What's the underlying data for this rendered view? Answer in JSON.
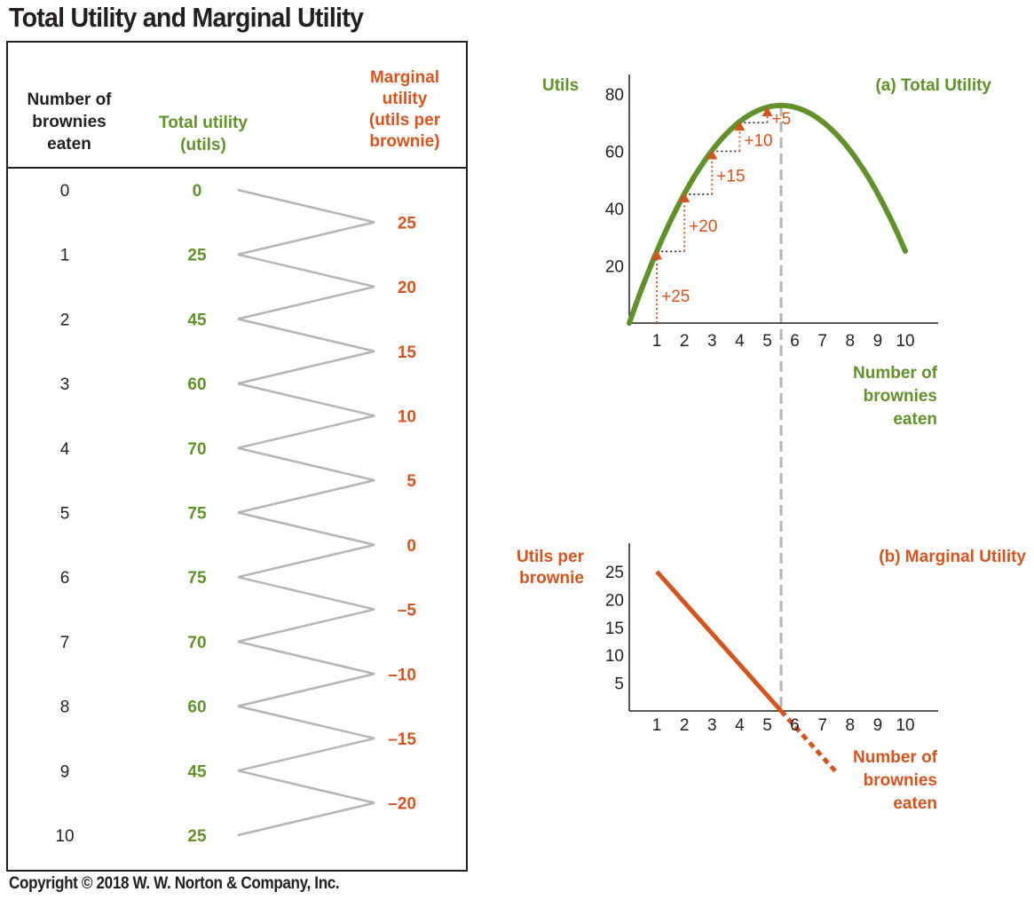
{
  "title": "Total Utility and Marginal Utility",
  "copyright": "Copyright © 2018 W. W. Norton & Company, Inc.",
  "colors": {
    "green": "#62902b",
    "orange": "#d4541e",
    "gray": "#b4b4b4",
    "black": "#231f20"
  },
  "table": {
    "col_brownies_header": [
      "Number of",
      "brownies",
      "eaten"
    ],
    "col_total_header": [
      "Total utility",
      "(utils)"
    ],
    "col_marginal_header": [
      "Marginal",
      "utility",
      "(utils per",
      "brownie)"
    ],
    "brownies": [
      "0",
      "1",
      "2",
      "3",
      "4",
      "5",
      "6",
      "7",
      "8",
      "9",
      "10"
    ],
    "total_utility": [
      "0",
      "25",
      "45",
      "60",
      "70",
      "75",
      "75",
      "70",
      "60",
      "45",
      "25"
    ],
    "marginal_utility": [
      "25",
      "20",
      "15",
      "10",
      "5",
      "0",
      "–5",
      "–10",
      "–15",
      "–20"
    ]
  },
  "chart_data": [
    {
      "type": "line",
      "title": "(a) Total Utility",
      "ylabel": "Utils",
      "xlabel": [
        "Number of",
        "brownies",
        "eaten"
      ],
      "x_ticks": [
        "1",
        "2",
        "3",
        "4",
        "5",
        "6",
        "7",
        "8",
        "9",
        "10"
      ],
      "y_ticks": [
        "20",
        "40",
        "60",
        "80"
      ],
      "xlim": [
        0,
        11
      ],
      "ylim": [
        0,
        85
      ],
      "x": [
        0,
        1,
        2,
        3,
        4,
        5,
        5.5,
        6,
        7,
        8,
        9,
        10
      ],
      "y": [
        0,
        25,
        45,
        60,
        70,
        75,
        76,
        75,
        70,
        60,
        45,
        25
      ],
      "increments": [
        {
          "from": 0,
          "to": 1,
          "label": "+25"
        },
        {
          "from": 1,
          "to": 2,
          "label": "+20"
        },
        {
          "from": 2,
          "to": 3,
          "label": "+15"
        },
        {
          "from": 3,
          "to": 4,
          "label": "+10"
        },
        {
          "from": 4,
          "to": 5,
          "label": "+5"
        }
      ],
      "max_marker_x": 5.5
    },
    {
      "type": "line",
      "title": "(b) Marginal Utility",
      "ylabel": [
        "Utils per",
        "brownie"
      ],
      "xlabel": [
        "Number of",
        "brownies",
        "eaten"
      ],
      "x_ticks": [
        "1",
        "2",
        "3",
        "4",
        "5",
        "6",
        "7",
        "8",
        "9",
        "10"
      ],
      "y_ticks": [
        "5",
        "10",
        "15",
        "20",
        "25"
      ],
      "xlim": [
        0,
        11
      ],
      "ylim": [
        0,
        30
      ],
      "solid_segment": {
        "x": [
          1,
          5.5
        ],
        "y": [
          25,
          0
        ]
      },
      "dotted_segment": {
        "x": [
          5.5,
          7.5
        ],
        "y": [
          0,
          -11
        ]
      }
    }
  ]
}
